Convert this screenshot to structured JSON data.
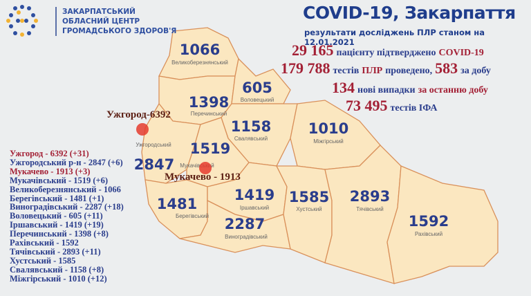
{
  "header": {
    "org_lines": [
      "ЗАКАРПАТСЬКИЙ",
      "ОБЛАСНИЙ ЦЕНТР",
      "ГРОМАДСЬКОГО ЗДОРОВ'Я"
    ],
    "title": "COVID-19, Закарпаття",
    "subtitle": "результати досліджень ПЛР станом на 12.01.2021"
  },
  "stats": {
    "confirmed": "29 165",
    "confirmed_text": "пацієнту підтверджено",
    "confirmed_tail": "COVID-19",
    "tests": "179 788",
    "tests_text1": "тестів",
    "tests_plr": "ПЛР",
    "tests_text2": "проведено,",
    "tests_day": "583",
    "tests_day_text": "за добу",
    "new_cases": "134",
    "new_text1": "нові випадки",
    "new_text2": "за останню добу",
    "ifa": "73 495",
    "ifa_text": "тестів ІФА"
  },
  "districts": [
    {
      "name": "Великоберезнянський",
      "value": "1066"
    },
    {
      "name": "Перечинський",
      "value": "1398"
    },
    {
      "name": "Воловецький",
      "value": "605"
    },
    {
      "name": "Ужгородський",
      "value": "2847"
    },
    {
      "name": "Свалявський",
      "value": "1158"
    },
    {
      "name": "Мукачівський",
      "value": "1519"
    },
    {
      "name": "Берегівський",
      "value": "1481"
    },
    {
      "name": "Іршавський",
      "value": "1419"
    },
    {
      "name": "Виноградівський",
      "value": "2287"
    },
    {
      "name": "Міжгірський",
      "value": "1010"
    },
    {
      "name": "Хустський",
      "value": "1585"
    },
    {
      "name": "Тячівський",
      "value": "2893"
    },
    {
      "name": "Рахівський",
      "value": "1592"
    }
  ],
  "cities": [
    {
      "label": "Ужгород-6392"
    },
    {
      "label": "Мукачево - 1913"
    }
  ],
  "list": [
    "Ужгород - 6392 (+31)",
    "Ужгородський р-н - 2847 (+6)",
    "Мукачево - 1913 (+3)",
    "Мукачівський - 1519 (+6)",
    "Великоберезнянський - 1066",
    "Берегівський - 1481 (+1)",
    "Виноградівський - 2287 (+18)",
    "Воловецький - 605 (+11)",
    "Іршавський - 1419 (+19)",
    "Перечинський - 1398 (+8)",
    "Рахівський - 1592",
    "Тячівський - 2893 (+11)",
    "Хустський - 1585",
    "Свалявський - 1158 (+8)",
    "Міжгірський - 1010 (+12)"
  ],
  "colors": {
    "map_fill": "#fbe7c0",
    "border": "#d9905a",
    "number": "#2a3d8c",
    "accent": "#a32035",
    "city_dot": "#e53b2e"
  }
}
